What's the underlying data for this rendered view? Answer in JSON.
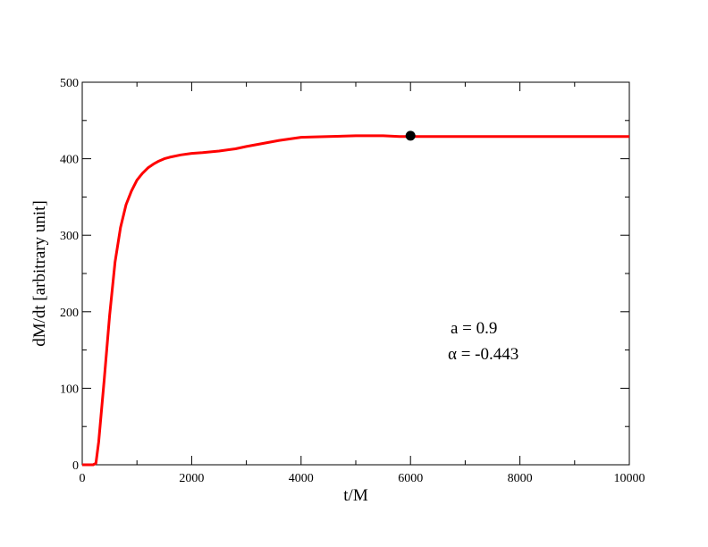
{
  "chart_data": {
    "type": "line",
    "title": "",
    "xlabel": "t/M",
    "ylabel": "dM/dt [arbitrary unit]",
    "xlim": [
      0,
      10000
    ],
    "ylim": [
      0,
      500
    ],
    "x_ticks": [
      0,
      2000,
      4000,
      6000,
      8000,
      10000
    ],
    "y_ticks": [
      0,
      100,
      200,
      300,
      400,
      500
    ],
    "grid": false,
    "series": [
      {
        "color": "#ff0000",
        "x": [
          0,
          100,
          200,
          250,
          300,
          400,
          500,
          600,
          700,
          800,
          900,
          1000,
          1100,
          1200,
          1300,
          1400,
          1500,
          1600,
          1800,
          2000,
          2200,
          2500,
          2800,
          3000,
          3300,
          3600,
          4000,
          4200,
          4500,
          5000,
          5500,
          5800,
          6000,
          6500,
          7000,
          8000,
          9000,
          10000
        ],
        "y": [
          0,
          0,
          0,
          2,
          30,
          110,
          195,
          265,
          310,
          340,
          358,
          372,
          381,
          388,
          393,
          397,
          400,
          402,
          405,
          407,
          408,
          410,
          413,
          416,
          420,
          424,
          428,
          428.5,
          429,
          430,
          430,
          429,
          429,
          429,
          429,
          429,
          429,
          429
        ]
      }
    ],
    "marker": {
      "x": 6000,
      "y": 430,
      "color": "#000000"
    },
    "annotations": [
      "a = 0.9",
      "α = -0.443"
    ]
  }
}
